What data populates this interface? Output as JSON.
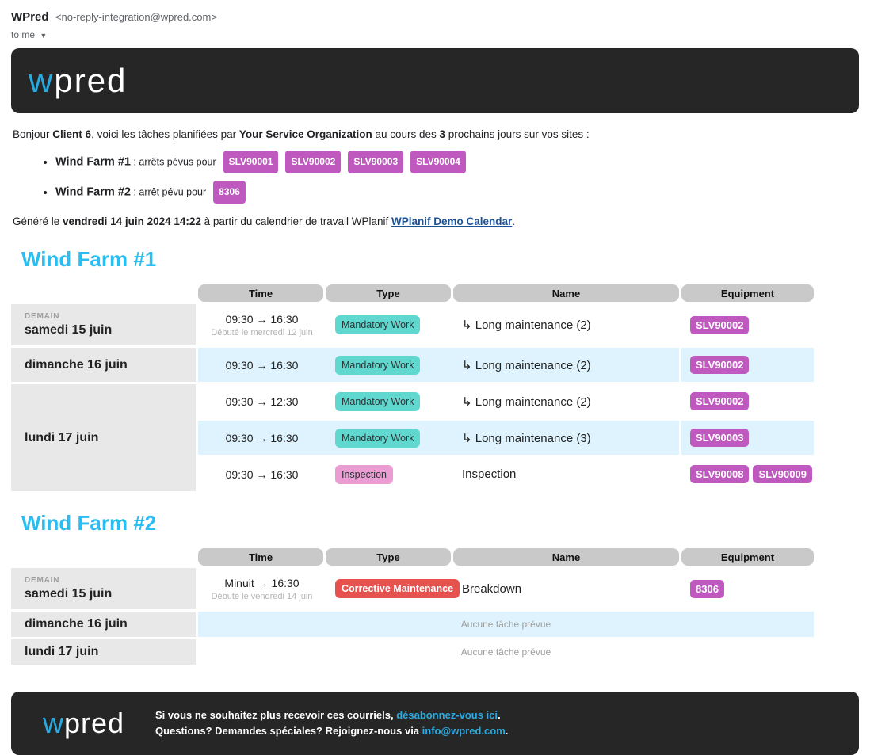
{
  "colors": {
    "accent_cyan": "#29abe2",
    "heading_cyan": "#29bdf1",
    "badge_equipment": "#bf58bf",
    "badge_mandatory": "#60d8cf",
    "badge_inspection": "#eb9dd3",
    "badge_corrective": "#e8524e",
    "row_alt_blue": "#def3fd",
    "date_cell_gray": "#e8e8e8",
    "header_cell_gray": "#c9c9c9",
    "banner_dark": "#262626",
    "link_navy": "#1a5296"
  },
  "mail_header": {
    "sender_name": "WPred",
    "sender_address": "<no-reply-integration@wpred.com>",
    "to_label": "to me",
    "caret": "▼"
  },
  "logo": {
    "w": "w",
    "rest": "pred"
  },
  "intro": {
    "p1": "Bonjour ",
    "client": "Client 6",
    "p2": ", voici les tâches planifiées par ",
    "org": "Your Service Organization",
    "p3": " au cours des ",
    "days": "3",
    "p4": " prochains jours sur vos sites :"
  },
  "sites_summary": [
    {
      "name": "Wind Farm #1",
      "label": ": arrêts pévus pour",
      "badges": [
        "SLV90001",
        "SLV90002",
        "SLV90003",
        "SLV90004"
      ]
    },
    {
      "name": "Wind Farm #2",
      "label": ": arrêt pévu pour",
      "badges": [
        "8306"
      ]
    }
  ],
  "generated_line": {
    "p1": "Généré le ",
    "datetime": "vendredi 14 juin 2024 14:22",
    "p2": " à partir du calendrier de travail WPlanif ",
    "link_text": "WPlanif Demo Calendar",
    "p3": "."
  },
  "table_headers": [
    "Time",
    "Type",
    "Name",
    "Equipment"
  ],
  "sections": [
    {
      "title": "Wind Farm #1",
      "days": [
        {
          "tag": "DEMAIN",
          "date": "samedi 15 juin",
          "tasks": [
            {
              "time": "09:30 → 16:30",
              "time_note": "Débuté le mercredi 12 juin",
              "type": "Mandatory Work",
              "type_style": "mandatory",
              "name": "↳ Long maintenance (2)",
              "equipment": [
                "SLV90002"
              ]
            }
          ]
        },
        {
          "date": "dimanche 16 juin",
          "tasks": [
            {
              "time": "09:30 → 16:30",
              "type": "Mandatory Work",
              "type_style": "mandatory",
              "name": "↳ Long maintenance (2)",
              "equipment": [
                "SLV90002"
              ]
            }
          ]
        },
        {
          "date": "lundi 17 juin",
          "tasks": [
            {
              "time": "09:30 → 12:30",
              "type": "Mandatory Work",
              "type_style": "mandatory",
              "name": "↳ Long maintenance (2)",
              "equipment": [
                "SLV90002"
              ]
            },
            {
              "time": "09:30 → 16:30",
              "type": "Mandatory Work",
              "type_style": "mandatory",
              "name": "↳ Long maintenance (3)",
              "equipment": [
                "SLV90003"
              ]
            },
            {
              "time": "09:30 → 16:30",
              "type": "Inspection",
              "type_style": "inspection",
              "name": "Inspection",
              "equipment": [
                "SLV90008",
                "SLV90009"
              ]
            }
          ]
        }
      ]
    },
    {
      "title": "Wind Farm #2",
      "days": [
        {
          "tag": "DEMAIN",
          "date": "samedi 15 juin",
          "tasks": [
            {
              "time": "Minuit → 16:30",
              "time_note": "Débuté le vendredi 14 juin",
              "type": "Corrective Maintenance",
              "type_style": "corrective",
              "name": "Breakdown",
              "equipment": [
                "8306"
              ]
            }
          ]
        },
        {
          "date": "dimanche 16 juin",
          "tasks": [
            {
              "empty": "Aucune tâche prévue"
            }
          ]
        },
        {
          "date": "lundi 17 juin",
          "tasks": [
            {
              "empty": "Aucune tâche prévue"
            }
          ]
        }
      ]
    }
  ],
  "footer": {
    "line1_p1": "Si vous ne souhaitez plus recevoir ces courriels, ",
    "line1_link": "désabonnez-vous ici",
    "line1_p2": ".",
    "line2_p1": "Questions? Demandes spéciales? Rejoignez-nous via ",
    "line2_link": "info@wpred.com",
    "line2_p2": "."
  }
}
